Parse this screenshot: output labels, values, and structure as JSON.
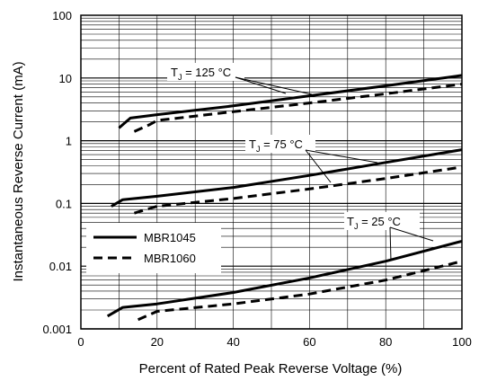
{
  "chart_data": {
    "type": "line",
    "xlabel": "Percent of Rated Peak Reverse Voltage (%)",
    "ylabel": "Instantaneous Reverse Current (mA)",
    "xlim": [
      0,
      100
    ],
    "ylim": [
      0.001,
      100
    ],
    "yscale": "log",
    "grid": true,
    "x_ticks": [
      "0",
      "20",
      "40",
      "60",
      "80",
      "100"
    ],
    "y_ticks": [
      "0.001",
      "0.01",
      "0.1",
      "1",
      "10",
      "100"
    ],
    "legend": {
      "placement": "middle-left",
      "entries": [
        {
          "label": "MBR1045",
          "style": "solid"
        },
        {
          "label": "MBR1060",
          "style": "dashed"
        }
      ]
    },
    "annotations": [
      {
        "text": "T",
        "sub": "J",
        "rest": " = 125 °C",
        "target": "125C"
      },
      {
        "text": "T",
        "sub": "J",
        "rest": " = 75 °C",
        "target": "75C"
      },
      {
        "text": "T",
        "sub": "J",
        "rest": " = 25 °C",
        "target": "25C"
      }
    ],
    "series": [
      {
        "device": "MBR1045",
        "group": "125C",
        "style": "solid",
        "x": [
          10,
          13,
          20,
          40,
          60,
          80,
          100
        ],
        "y": [
          1.6,
          2.3,
          2.6,
          3.6,
          5.2,
          7.5,
          11
        ]
      },
      {
        "device": "MBR1060",
        "group": "125C",
        "style": "dashed",
        "x": [
          14,
          18,
          20,
          40,
          60,
          80,
          100
        ],
        "y": [
          1.4,
          1.8,
          2.1,
          2.9,
          4.0,
          5.6,
          8.0
        ]
      },
      {
        "device": "MBR1045",
        "group": "75C",
        "style": "solid",
        "x": [
          8,
          11,
          20,
          40,
          60,
          80,
          100
        ],
        "y": [
          0.09,
          0.115,
          0.13,
          0.18,
          0.28,
          0.45,
          0.72
        ]
      },
      {
        "device": "MBR1060",
        "group": "75C",
        "style": "dashed",
        "x": [
          14,
          20,
          40,
          60,
          80,
          100
        ],
        "y": [
          0.07,
          0.09,
          0.12,
          0.17,
          0.25,
          0.38
        ]
      },
      {
        "device": "MBR1045",
        "group": "25C",
        "style": "solid",
        "x": [
          7,
          11,
          20,
          40,
          60,
          80,
          100
        ],
        "y": [
          0.0016,
          0.0022,
          0.0025,
          0.0038,
          0.0065,
          0.012,
          0.025
        ]
      },
      {
        "device": "MBR1060",
        "group": "25C",
        "style": "dashed",
        "x": [
          15,
          20,
          40,
          60,
          80,
          100
        ],
        "y": [
          0.0014,
          0.0019,
          0.0025,
          0.0036,
          0.006,
          0.012
        ]
      }
    ]
  }
}
